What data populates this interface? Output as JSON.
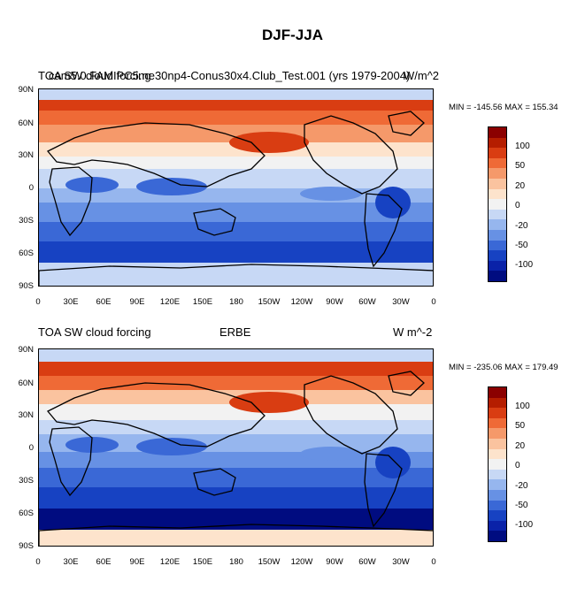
{
  "figure": {
    "title": "DJF-JJA"
  },
  "panels": [
    {
      "left_label": "TOA SW cloud forcing",
      "center_label": "cam5.0.FAMIPC5.ne30np4-Conus30x4.Club_Test.001 (yrs 1979-2004)",
      "right_label": "W/m^2",
      "stats": "MIN = -145.56 MAX = 155.34"
    },
    {
      "left_label": "TOA SW cloud forcing",
      "center_label": "ERBE",
      "right_label": "W m^-2",
      "stats": "MIN = -235.06 MAX = 179.49"
    }
  ],
  "axes": {
    "lat_labels": [
      "90N",
      "60N",
      "30N",
      "0",
      "30S",
      "60S",
      "90S"
    ],
    "lon_labels": [
      "0",
      "30E",
      "60E",
      "90E",
      "120E",
      "150E",
      "180",
      "150W",
      "120W",
      "90W",
      "60W",
      "30W",
      "0"
    ]
  },
  "colorbar": {
    "labels": [
      "100",
      "50",
      "20",
      "0",
      "-20",
      "-50",
      "-100"
    ],
    "colors": [
      "#8b0000",
      "#b51d00",
      "#d93d12",
      "#ef6a36",
      "#f5996a",
      "#fac39f",
      "#fde3cc",
      "#f2f2f2",
      "#c7d8f5",
      "#96b6ee",
      "#6791e4",
      "#3a68d6",
      "#1742c2",
      "#0a22a8",
      "#000c80"
    ]
  },
  "chart_data": {
    "type": "heatmap",
    "title": "DJF-JJA",
    "variable": "TOA SW cloud forcing",
    "units": "W/m^2",
    "colorbar_levels": [
      -100,
      -50,
      -20,
      0,
      20,
      50,
      100
    ],
    "x_ticks": [
      "0",
      "30E",
      "60E",
      "90E",
      "120E",
      "150E",
      "180",
      "150W",
      "120W",
      "90W",
      "60W",
      "30W",
      "0"
    ],
    "y_ticks": [
      "90N",
      "60N",
      "30N",
      "0",
      "30S",
      "60S",
      "90S"
    ],
    "maps": [
      {
        "name": "cam5.0.FAMIPC5.ne30np4-Conus30x4.Club_Test.001 (yrs 1979-2004)",
        "min": -145.56,
        "max": 155.34
      },
      {
        "name": "ERBE",
        "min": -235.06,
        "max": 179.49
      }
    ]
  }
}
